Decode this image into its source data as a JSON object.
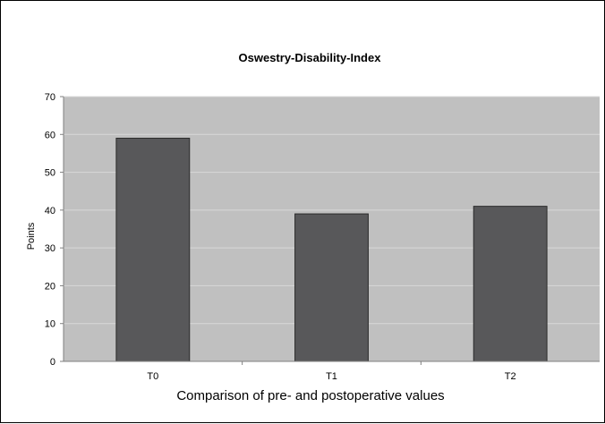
{
  "chart_data": {
    "type": "bar",
    "title": "Oswestry-Disability-Index",
    "xlabel": "Comparison of pre- and postoperative values",
    "ylabel": "Points",
    "categories": [
      "T0",
      "T1",
      "T2"
    ],
    "values": [
      59,
      39,
      41
    ],
    "ylim": [
      0,
      70
    ],
    "yticks": [
      0,
      10,
      20,
      30,
      40,
      50,
      60,
      70
    ],
    "grid": true,
    "legend": "none",
    "colors": {
      "bar": "#58585a",
      "bar_border": "#2b2b2b",
      "plot_background": "#c0c0c0",
      "grid": "#d8d8d8",
      "axis": "#808080"
    }
  }
}
